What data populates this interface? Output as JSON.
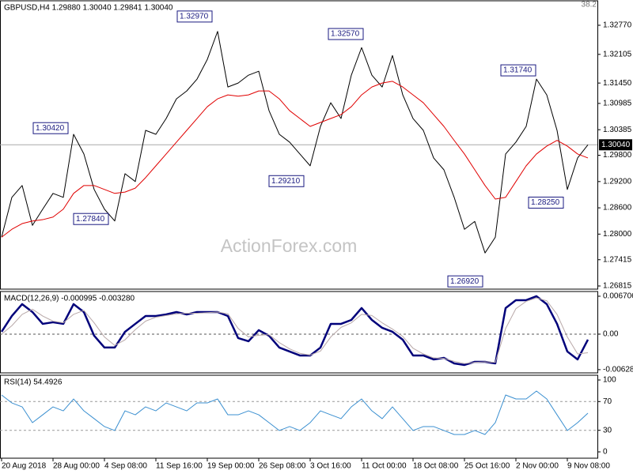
{
  "chart_data": [
    {
      "type": "line",
      "title": "GBPUSD,H4  1.29880 1.30040 1.29841 1.30040",
      "corner_label": 38.2,
      "watermark": "ActionForex.com",
      "ylim": [
        1.26743,
        1.33329
      ],
      "yticks": [
        {
          "value": 1.3277,
          "label": "1.32770"
        },
        {
          "value": 1.32105,
          "label": "1.32105"
        },
        {
          "value": 1.3145,
          "label": "1.31450"
        },
        {
          "value": 1.30985,
          "label": "1.30985"
        },
        {
          "value": 1.30385,
          "label": "1.30385"
        },
        {
          "value": 1.298,
          "label": "1.29800"
        },
        {
          "value": 1.292,
          "label": "1.29200"
        },
        {
          "value": 1.286,
          "label": "1.28600"
        },
        {
          "value": 1.28,
          "label": "1.28000"
        },
        {
          "value": 1.27415,
          "label": "1.27415"
        },
        {
          "value": 1.26815,
          "label": "1.26815"
        }
      ],
      "series": [
        {
          "color": "#000000",
          "values": [
            1.2793,
            1.2884,
            1.2911,
            1.282,
            1.2857,
            1.2893,
            1.2884,
            1.3028,
            1.2983,
            1.2902,
            1.2857,
            1.283,
            1.2938,
            1.292,
            1.3037,
            1.3028,
            1.3064,
            1.3109,
            1.3127,
            1.3154,
            1.3199,
            1.3263,
            1.3136,
            1.3145,
            1.3163,
            1.3172,
            1.3082,
            1.3028,
            1.301,
            1.2983,
            1.2956,
            1.3046,
            1.31,
            1.3064,
            1.3163,
            1.3226,
            1.3163,
            1.3136,
            1.3208,
            1.3118,
            1.3064,
            1.3037,
            1.2974,
            1.2947,
            1.2884,
            1.2811,
            1.2829,
            1.2757,
            1.2793,
            1.2983,
            1.301,
            1.3046,
            1.3154,
            1.3118,
            1.3037,
            1.2902,
            1.2974,
            1.3004
          ]
        },
        {
          "color": "#e00000",
          "values": [
            1.2793,
            1.2811,
            1.2824,
            1.283,
            1.2833,
            1.2839,
            1.2857,
            1.2893,
            1.2911,
            1.2911,
            1.2902,
            1.2893,
            1.2896,
            1.2905,
            1.2929,
            1.2956,
            1.2983,
            1.301,
            1.3037,
            1.3064,
            1.3091,
            1.3109,
            1.3118,
            1.3115,
            1.3118,
            1.3127,
            1.3127,
            1.3109,
            1.3082,
            1.3064,
            1.3046,
            1.3055,
            1.3064,
            1.3073,
            1.3091,
            1.3118,
            1.3136,
            1.3145,
            1.3149,
            1.3136,
            1.3118,
            1.31,
            1.3073,
            1.3046,
            1.3014,
            1.2983,
            1.2947,
            1.2911,
            1.288,
            1.2884,
            1.292,
            1.2956,
            1.2983,
            1.3001,
            1.3014,
            1.3001,
            1.2983,
            1.2974
          ]
        }
      ],
      "annotations": [
        {
          "value": 1.3297,
          "label": "1.32970"
        },
        {
          "value": 1.3257,
          "label": "1.32570"
        },
        {
          "value": 1.3174,
          "label": "1.31740"
        },
        {
          "value": 1.3042,
          "label": "1.30420"
        },
        {
          "value": 1.2921,
          "label": "1.29210"
        },
        {
          "value": 1.2784,
          "label": "1.27840"
        },
        {
          "value": 1.2692,
          "label": "1.26920"
        },
        {
          "value": 1.2825,
          "label": "1.28250"
        }
      ],
      "last_price": {
        "value": 1.3004,
        "label": "1.30040"
      }
    },
    {
      "type": "line",
      "title": "MACD(12,26,9) -0.000995 -0.003280",
      "ylim": [
        -0.00685,
        0.00754
      ],
      "yticks": [
        0.006706,
        {
          "value": 0,
          "label": "0.00"
        },
        -0.00628
      ],
      "zero_line": true,
      "series": [
        {
          "color": "#00007a",
          "width": 2.5,
          "values": [
            0.00042,
            0.00321,
            0.00531,
            0.00391,
            0.00182,
            0.0021,
            0.00182,
            0.00531,
            0.00391,
            -0.00028,
            -0.00237,
            -0.00237,
            0.00042,
            0.00182,
            0.00321,
            0.00321,
            0.00349,
            0.00391,
            0.00349,
            0.00391,
            0.00391,
            0.00391,
            0.00321,
            -0.0007,
            -0.00126,
            0.0007,
            -0.00028,
            -0.00237,
            -0.00307,
            -0.00377,
            -0.00377,
            -0.00237,
            0.00182,
            0.00182,
            0.00251,
            0.00461,
            0.00251,
            0.00112,
            0.00042,
            -0.00098,
            -0.00377,
            -0.00377,
            -0.00447,
            -0.00419,
            -0.00517,
            -0.00545,
            -0.00489,
            -0.00489,
            -0.00517,
            0.00461,
            0.00601,
            0.00601,
            0.00671,
            0.00531,
            0.00182,
            -0.00307,
            -0.00447,
            -0.00098
          ]
        },
        {
          "color": "#b8a8a8",
          "width": 1,
          "values": [
            0.0,
            0.0015,
            0.0035,
            0.0044,
            0.0032,
            0.0023,
            0.002,
            0.0035,
            0.0042,
            0.002,
            -0.0005,
            -0.002,
            -0.001,
            0.0008,
            0.0023,
            0.003,
            0.0033,
            0.0036,
            0.0037,
            0.0037,
            0.0038,
            0.0039,
            0.0036,
            0.001,
            -0.0005,
            -0.0002,
            -0.0001,
            -0.0015,
            -0.0026,
            -0.0034,
            -0.0037,
            -0.003,
            -0.0005,
            0.0012,
            0.002,
            0.0035,
            0.0033,
            0.002,
            0.0009,
            -0.0004,
            -0.0025,
            -0.0035,
            -0.0042,
            -0.0043,
            -0.0048,
            -0.0052,
            -0.005,
            -0.0049,
            -0.005,
            0.001,
            0.0045,
            0.0058,
            0.0064,
            0.0059,
            0.0035,
            -0.0005,
            -0.0035,
            -0.00328
          ]
        }
      ]
    },
    {
      "type": "line",
      "title": "RSI(14) 54.4926",
      "ylim": [
        -8.8,
        106.6
      ],
      "yticks": [
        100,
        70,
        30,
        0
      ],
      "levels": [
        70,
        30
      ],
      "categories": [
        "20 Aug 2018",
        null,
        null,
        null,
        null,
        "28 Aug 00:00",
        null,
        null,
        null,
        null,
        "4 Sep 08:00",
        null,
        null,
        null,
        null,
        "11 Sep 16:00",
        null,
        null,
        null,
        null,
        "19 Sep 00:00",
        null,
        null,
        null,
        null,
        "26 Sep 08:00",
        null,
        null,
        null,
        null,
        "3 Oct 16:00",
        null,
        null,
        null,
        null,
        "11 Oct 00:00",
        null,
        null,
        null,
        null,
        "18 Oct 08:00",
        null,
        null,
        null,
        null,
        "25 Oct 16:00",
        null,
        null,
        null,
        null,
        "2 Nov 00:00",
        null,
        null,
        null,
        null,
        "9 Nov 08:00",
        null,
        null
      ],
      "series": [
        {
          "color": "#3a8fd0",
          "width": 1,
          "values": [
            79.1,
            68.1,
            62.6,
            40.7,
            51.6,
            62.6,
            57.1,
            73.6,
            57.1,
            46.2,
            35.2,
            29.7,
            57.1,
            51.6,
            62.6,
            57.1,
            68.1,
            62.6,
            57.1,
            68.1,
            68.1,
            73.6,
            51.6,
            51.6,
            57.1,
            51.6,
            40.7,
            29.7,
            35.2,
            29.7,
            40.7,
            57.1,
            51.6,
            46.2,
            62.6,
            73.6,
            57.1,
            46.2,
            62.6,
            46.2,
            29.7,
            35.2,
            35.2,
            29.7,
            24.2,
            24.2,
            29.7,
            24.2,
            40.7,
            79.1,
            73.6,
            73.6,
            84.6,
            73.6,
            51.6,
            29.7,
            40.7,
            53.8
          ]
        }
      ]
    }
  ]
}
